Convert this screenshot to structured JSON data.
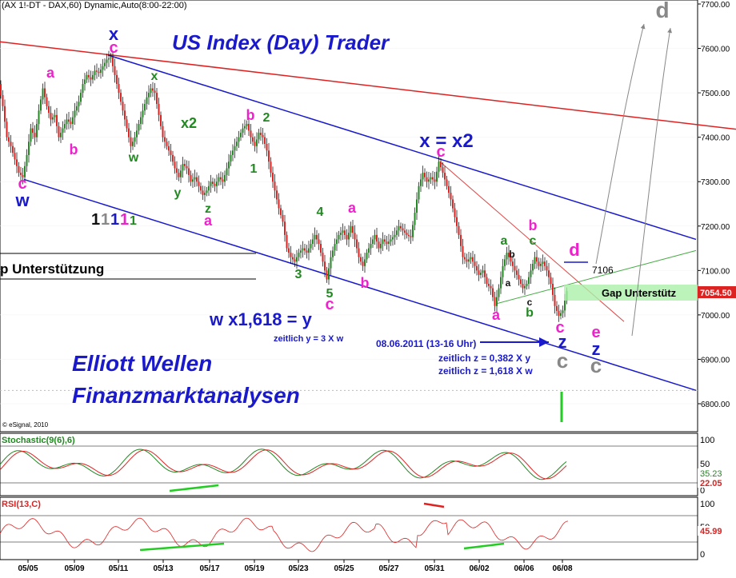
{
  "chart_data": {
    "type": "line",
    "header": "(AX 1!-DT - DAX,60) Dynamic,Auto(8:00-22:00)",
    "title": "US Index (Day) Trader",
    "copyright": "© eSignal, 2010",
    "branding": [
      "Elliott Wellen",
      "Finanzmarktanalysen"
    ],
    "y_axis": {
      "ylim": [
        6750,
        7750
      ],
      "ticks": [
        "7700.00",
        "7600.00",
        "7500.00",
        "7400.00",
        "7300.00",
        "7200.00",
        "7100.00",
        "7000.00",
        "6900.00",
        "6800.00"
      ],
      "last_price": "7054.50"
    },
    "x_axis": {
      "ticks": [
        "05/05",
        "05/09",
        "05/11",
        "05/13",
        "05/17",
        "05/19",
        "05/23",
        "05/25",
        "05/27",
        "05/31",
        "06/02",
        "06/06",
        "06/08"
      ]
    },
    "series": [
      {
        "name": "DAX 60 min",
        "points": [
          [
            0,
            7520
          ],
          [
            5,
            7470
          ],
          [
            10,
            7400
          ],
          [
            15,
            7380
          ],
          [
            20,
            7350
          ],
          [
            25,
            7320
          ],
          [
            30,
            7310
          ],
          [
            35,
            7360
          ],
          [
            40,
            7420
          ],
          [
            45,
            7400
          ],
          [
            50,
            7460
          ],
          [
            55,
            7510
          ],
          [
            60,
            7470
          ],
          [
            65,
            7440
          ],
          [
            70,
            7450
          ],
          [
            75,
            7400
          ],
          [
            80,
            7420
          ],
          [
            85,
            7440
          ],
          [
            90,
            7430
          ],
          [
            95,
            7460
          ],
          [
            100,
            7480
          ],
          [
            105,
            7520
          ],
          [
            110,
            7540
          ],
          [
            115,
            7530
          ],
          [
            120,
            7550
          ],
          [
            125,
            7545
          ],
          [
            130,
            7560
          ],
          [
            135,
            7575
          ],
          [
            140,
            7580
          ],
          [
            145,
            7540
          ],
          [
            150,
            7500
          ],
          [
            155,
            7460
          ],
          [
            160,
            7420
          ],
          [
            165,
            7380
          ],
          [
            170,
            7400
          ],
          [
            175,
            7430
          ],
          [
            180,
            7460
          ],
          [
            185,
            7490
          ],
          [
            190,
            7510
          ],
          [
            195,
            7500
          ],
          [
            200,
            7450
          ],
          [
            205,
            7400
          ],
          [
            210,
            7380
          ],
          [
            215,
            7360
          ],
          [
            220,
            7330
          ],
          [
            225,
            7310
          ],
          [
            230,
            7340
          ],
          [
            235,
            7330
          ],
          [
            240,
            7300
          ],
          [
            245,
            7310
          ],
          [
            250,
            7290
          ],
          [
            255,
            7270
          ],
          [
            260,
            7280
          ],
          [
            265,
            7300
          ],
          [
            270,
            7290
          ],
          [
            275,
            7310
          ],
          [
            280,
            7300
          ],
          [
            285,
            7330
          ],
          [
            290,
            7360
          ],
          [
            295,
            7380
          ],
          [
            300,
            7400
          ],
          [
            305,
            7420
          ],
          [
            310,
            7430
          ],
          [
            315,
            7400
          ],
          [
            320,
            7380
          ],
          [
            325,
            7410
          ],
          [
            330,
            7400
          ],
          [
            335,
            7370
          ],
          [
            340,
            7320
          ],
          [
            345,
            7280
          ],
          [
            350,
            7240
          ],
          [
            355,
            7210
          ],
          [
            360,
            7150
          ],
          [
            365,
            7130
          ],
          [
            370,
            7120
          ],
          [
            375,
            7140
          ],
          [
            380,
            7150
          ],
          [
            385,
            7140
          ],
          [
            390,
            7160
          ],
          [
            395,
            7180
          ],
          [
            400,
            7160
          ],
          [
            405,
            7120
          ],
          [
            410,
            7080
          ],
          [
            415,
            7130
          ],
          [
            420,
            7160
          ],
          [
            425,
            7180
          ],
          [
            430,
            7190
          ],
          [
            435,
            7170
          ],
          [
            440,
            7200
          ],
          [
            445,
            7170
          ],
          [
            450,
            7130
          ],
          [
            455,
            7110
          ],
          [
            460,
            7140
          ],
          [
            465,
            7160
          ],
          [
            470,
            7180
          ],
          [
            475,
            7150
          ],
          [
            480,
            7170
          ],
          [
            485,
            7160
          ],
          [
            490,
            7170
          ],
          [
            495,
            7180
          ],
          [
            500,
            7200
          ],
          [
            505,
            7190
          ],
          [
            510,
            7180
          ],
          [
            515,
            7175
          ],
          [
            520,
            7230
          ],
          [
            525,
            7290
          ],
          [
            530,
            7320
          ],
          [
            535,
            7300
          ],
          [
            540,
            7310
          ],
          [
            545,
            7300
          ],
          [
            550,
            7345
          ],
          [
            555,
            7320
          ],
          [
            560,
            7290
          ],
          [
            565,
            7260
          ],
          [
            570,
            7220
          ],
          [
            575,
            7180
          ],
          [
            580,
            7130
          ],
          [
            585,
            7120
          ],
          [
            590,
            7130
          ],
          [
            595,
            7110
          ],
          [
            600,
            7090
          ],
          [
            605,
            7100
          ],
          [
            610,
            7070
          ],
          [
            615,
            7060
          ],
          [
            620,
            7020
          ],
          [
            625,
            7060
          ],
          [
            630,
            7110
          ],
          [
            635,
            7140
          ],
          [
            640,
            7120
          ],
          [
            645,
            7100
          ],
          [
            650,
            7080
          ],
          [
            655,
            7060
          ],
          [
            660,
            7070
          ],
          [
            665,
            7100
          ],
          [
            670,
            7130
          ],
          [
            675,
            7110
          ],
          [
            680,
            7120
          ],
          [
            685,
            7100
          ],
          [
            690,
            7070
          ],
          [
            695,
            7020
          ],
          [
            700,
            6998
          ],
          [
            705,
            7010
          ],
          [
            710,
            7054
          ]
        ]
      }
    ],
    "trendlines": [
      {
        "color": "#dd2222",
        "from": [
          0,
          7615
        ],
        "to": [
          920,
          7418
        ]
      },
      {
        "color": "#1a1acc",
        "from": [
          135,
          7585
        ],
        "to": [
          870,
          7170
        ]
      },
      {
        "color": "#1a1acc",
        "from": [
          30,
          7305
        ],
        "to": [
          870,
          6830
        ]
      },
      {
        "color": "#dd4444",
        "from": [
          550,
          7345
        ],
        "to": [
          780,
          6985
        ]
      },
      {
        "color": "#44aa44",
        "from": [
          620,
          7025
        ],
        "to": [
          870,
          7145
        ]
      }
    ],
    "gap_label_left": "p Unterstützung",
    "gap_label_right": "Gap Unterstütz",
    "level_7106": "7106",
    "annotations_text": [
      {
        "t": "x",
        "x": 142,
        "y": 50,
        "c": "#1a1acc",
        "s": 22
      },
      {
        "t": "c",
        "x": 142,
        "y": 66,
        "c": "#ee22cc",
        "s": 20
      },
      {
        "t": "x",
        "x": 193,
        "y": 100,
        "c": "#228822",
        "s": 16
      },
      {
        "t": "a",
        "x": 63,
        "y": 97,
        "c": "#ee22cc",
        "s": 18
      },
      {
        "t": "b",
        "x": 92,
        "y": 193,
        "c": "#ee22cc",
        "s": 18
      },
      {
        "t": "c",
        "x": 28,
        "y": 236,
        "c": "#ee22cc",
        "s": 20
      },
      {
        "t": "w",
        "x": 28,
        "y": 258,
        "c": "#1a1acc",
        "s": 22
      },
      {
        "t": "w",
        "x": 167,
        "y": 202,
        "c": "#228822",
        "s": 16
      },
      {
        "t": "x2",
        "x": 236,
        "y": 160,
        "c": "#228822",
        "s": 18
      },
      {
        "t": "y",
        "x": 222,
        "y": 246,
        "c": "#228822",
        "s": 16
      },
      {
        "t": "z",
        "x": 260,
        "y": 266,
        "c": "#228822",
        "s": 16
      },
      {
        "t": "a",
        "x": 260,
        "y": 282,
        "c": "#ee22cc",
        "s": 18
      },
      {
        "t": "b",
        "x": 313,
        "y": 150,
        "c": "#ee22cc",
        "s": 18
      },
      {
        "t": "2",
        "x": 333,
        "y": 152,
        "c": "#228822",
        "s": 16
      },
      {
        "t": "1",
        "x": 317,
        "y": 216,
        "c": "#228822",
        "s": 16
      },
      {
        "t": "3",
        "x": 373,
        "y": 348,
        "c": "#228822",
        "s": 16
      },
      {
        "t": "4",
        "x": 400,
        "y": 270,
        "c": "#228822",
        "s": 16
      },
      {
        "t": "5",
        "x": 412,
        "y": 372,
        "c": "#228822",
        "s": 16
      },
      {
        "t": "c",
        "x": 412,
        "y": 387,
        "c": "#ee22cc",
        "s": 20
      },
      {
        "t": "a",
        "x": 440,
        "y": 266,
        "c": "#ee22cc",
        "s": 18
      },
      {
        "t": "b",
        "x": 456,
        "y": 360,
        "c": "#ee22cc",
        "s": 18
      },
      {
        "t": "x = x2",
        "x": 558,
        "y": 184,
        "c": "#1a1acc",
        "s": 24
      },
      {
        "t": "c",
        "x": 551,
        "y": 196,
        "c": "#ee22cc",
        "s": 20
      },
      {
        "t": "b",
        "x": 666,
        "y": 288,
        "c": "#ee22cc",
        "s": 18
      },
      {
        "t": "a",
        "x": 630,
        "y": 306,
        "c": "#228822",
        "s": 16
      },
      {
        "t": "c",
        "x": 666,
        "y": 306,
        "c": "#228822",
        "s": 16
      },
      {
        "t": "b",
        "x": 640,
        "y": 322,
        "c": "#111111",
        "s": 12
      },
      {
        "t": "a",
        "x": 635,
        "y": 358,
        "c": "#111111",
        "s": 12
      },
      {
        "t": "c",
        "x": 662,
        "y": 382,
        "c": "#111111",
        "s": 12
      },
      {
        "t": "b",
        "x": 662,
        "y": 396,
        "c": "#228822",
        "s": 16
      },
      {
        "t": "a",
        "x": 620,
        "y": 400,
        "c": "#ee22cc",
        "s": 18
      },
      {
        "t": "d",
        "x": 718,
        "y": 320,
        "c": "#ee22cc",
        "s": 22
      },
      {
        "t": "c",
        "x": 700,
        "y": 416,
        "c": "#ee22cc",
        "s": 20
      },
      {
        "t": "z",
        "x": 703,
        "y": 435,
        "c": "#1a1acc",
        "s": 22
      },
      {
        "t": "c",
        "x": 703,
        "y": 460,
        "c": "#888888",
        "s": 26
      },
      {
        "t": "e",
        "x": 745,
        "y": 422,
        "c": "#ee22cc",
        "s": 20
      },
      {
        "t": "z",
        "x": 745,
        "y": 444,
        "c": "#1a1acc",
        "s": 22
      },
      {
        "t": "c",
        "x": 745,
        "y": 466,
        "c": "#888888",
        "s": 26
      },
      {
        "t": "d",
        "x": 828,
        "y": 22,
        "c": "#888888",
        "s": 28
      }
    ],
    "wave_count_1": "1",
    "wave_count_2": "1",
    "wave_count_3": "1",
    "wave_count_4": "1",
    "wave_count_5": "1",
    "ratio_label": "w x1,618 = y",
    "ratio_note": "zeitlich y = 3 X w",
    "date_note": "08.06.2011 (13-16 Uhr)",
    "z_note_1": "zeitlich z = 0,382 X y",
    "z_note_2": "zeitlich z = 1,618 X w",
    "stochastic": {
      "label": "Stochastic(9(6),6)",
      "ticks": [
        "100",
        "50",
        "0"
      ],
      "readout_1": "35.23",
      "readout_2": "22.05",
      "colors": {
        "k": "#228822",
        "d": "#dd2222"
      }
    },
    "rsi": {
      "label": "RSI(13,C)",
      "ticks": [
        "100",
        "50",
        "0"
      ],
      "readout": "45.99",
      "color": "#dd2222"
    }
  }
}
